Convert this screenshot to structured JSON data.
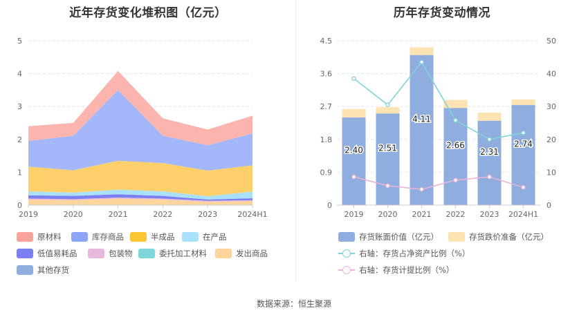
{
  "source_text": "数据来源：恒生聚源",
  "chart_data": [
    {
      "type": "area",
      "stacked": true,
      "title": "近年存货变化堆积图（亿元）",
      "categories": [
        "2019",
        "2020",
        "2021",
        "2022",
        "2023",
        "2024H1"
      ],
      "ylim": [
        0,
        5
      ],
      "yticks": [
        "0",
        "1",
        "2",
        "3",
        "4",
        "5"
      ],
      "series": [
        {
          "name": "发出商品",
          "color": "#fcd59c",
          "values": [
            0.17,
            0.15,
            0.2,
            0.17,
            0.1,
            0.12
          ]
        },
        {
          "name": "委托加工材料",
          "color": "#7fd6d8",
          "values": [
            0.0,
            0.0,
            0.0,
            0.0,
            0.0,
            0.0
          ]
        },
        {
          "name": "包装物",
          "color": "#e8b9dd",
          "values": [
            0.03,
            0.03,
            0.03,
            0.03,
            0.03,
            0.03
          ]
        },
        {
          "name": "低值易耗品",
          "color": "#7b7ff0",
          "values": [
            0.1,
            0.1,
            0.1,
            0.08,
            0.04,
            0.06
          ]
        },
        {
          "name": "在产品",
          "color": "#a9e1fb",
          "values": [
            0.12,
            0.1,
            0.14,
            0.14,
            0.1,
            0.2
          ]
        },
        {
          "name": "半成品",
          "color": "#fdd06b",
          "values": [
            0.75,
            0.68,
            0.88,
            0.86,
            0.78,
            0.8
          ]
        },
        {
          "name": "库存商品",
          "color": "#a3b7fa",
          "values": [
            0.78,
            1.05,
            2.15,
            0.83,
            0.77,
            0.97
          ]
        },
        {
          "name": "原材料",
          "color": "#fbb5ae",
          "values": [
            0.45,
            0.39,
            0.58,
            0.53,
            0.48,
            0.54
          ]
        },
        {
          "name": "其他存货",
          "color": "#8fadde",
          "values": [
            0.0,
            0.0,
            0.0,
            0.0,
            0.0,
            0.0
          ]
        }
      ],
      "legend": [
        {
          "name": "原材料",
          "color": "#f8a49c"
        },
        {
          "name": "库存商品",
          "color": "#8ca5f8"
        },
        {
          "name": "半成品",
          "color": "#fbc534"
        },
        {
          "name": "在产品",
          "color": "#a9e1fb"
        },
        {
          "name": "低值易耗品",
          "color": "#7b7ff0"
        },
        {
          "name": "包装物",
          "color": "#e8b9dd"
        },
        {
          "name": "委托加工材料",
          "color": "#7fd6d8"
        },
        {
          "name": "发出商品",
          "color": "#fcd59c"
        },
        {
          "name": "其他存货",
          "color": "#8fadde"
        }
      ]
    },
    {
      "type": "bar+line",
      "title": "历年存货变动情况",
      "categories": [
        "2019",
        "2020",
        "2021",
        "2022",
        "2023",
        "2024H1"
      ],
      "left_ylim": [
        0,
        4.5
      ],
      "left_yticks": [
        "0",
        "0.9",
        "1.8",
        "2.7",
        "3.6",
        "4.5"
      ],
      "right_ylim": [
        0,
        50
      ],
      "right_yticks": [
        "0",
        "10",
        "20",
        "30",
        "40",
        "50"
      ],
      "bars": [
        {
          "name": "存货账面价值（亿元）",
          "color": "#8fadde",
          "values": [
            2.4,
            2.51,
            4.11,
            2.66,
            2.31,
            2.74
          ],
          "labels": [
            "2.40",
            "2.51",
            "4.11",
            "2.66",
            "2.31",
            "2.74"
          ]
        },
        {
          "name": "存货跌价准备（亿元）",
          "color": "#fde2b2",
          "values": [
            0.23,
            0.17,
            0.21,
            0.22,
            0.22,
            0.15
          ]
        }
      ],
      "lines": [
        {
          "name": "右轴：存货占净资产比例（%）",
          "color": "#82d3d8",
          "values": [
            38.5,
            30.5,
            43.5,
            25.8,
            20.0,
            22.0
          ]
        },
        {
          "name": "右轴：存货计提比例（%）",
          "color": "#eab3d8",
          "values": [
            8.6,
            5.9,
            4.8,
            7.6,
            8.6,
            5.4
          ]
        }
      ]
    }
  ]
}
